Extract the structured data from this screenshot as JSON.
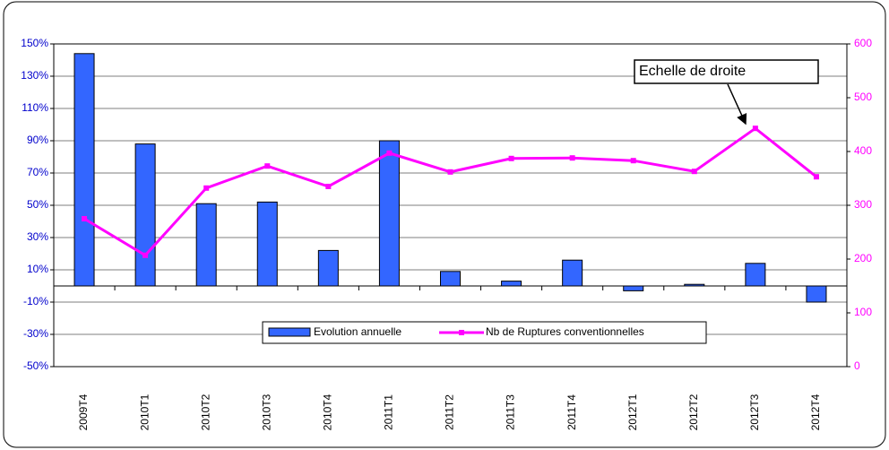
{
  "chart_data": {
    "type": "bar-line",
    "categories": [
      "2009T4",
      "2010T1",
      "2010T2",
      "2010T3",
      "2010T4",
      "2011T1",
      "2011T2",
      "2011T3",
      "2011T4",
      "2012T1",
      "2012T2",
      "2012T3",
      "2012T4"
    ],
    "series": [
      {
        "name": "Evolution annuelle",
        "color": "#3366ff",
        "type": "bar",
        "values": [
          144,
          88,
          51,
          52,
          22,
          90,
          9,
          3,
          16,
          -3,
          1,
          14,
          -10
        ]
      },
      {
        "name": "Nb de Ruptures conventionnelles",
        "color": "#ff00ff",
        "type": "line",
        "axis": "y2",
        "values": [
          275,
          207,
          332,
          373,
          335,
          397,
          362,
          387,
          388,
          383,
          363,
          443,
          353
        ]
      }
    ],
    "ylim": [
      -50,
      150
    ],
    "yticks": [
      {
        "value": -50,
        "label": "-50%"
      },
      {
        "value": -30,
        "label": "-30%"
      },
      {
        "value": -10,
        "label": "-10%"
      },
      {
        "value": 10,
        "label": "10%"
      },
      {
        "value": 30,
        "label": "30%"
      },
      {
        "value": 50,
        "label": "50%"
      },
      {
        "value": 70,
        "label": "70%"
      },
      {
        "value": 90,
        "label": "90%"
      },
      {
        "value": 110,
        "label": "110%"
      },
      {
        "value": 130,
        "label": "130%"
      },
      {
        "value": 150,
        "label": "150%"
      }
    ],
    "y2lim": [
      0,
      600
    ],
    "y2ticks": [
      0,
      100,
      200,
      300,
      400,
      500,
      600
    ],
    "grid": true,
    "annotation": "Echelle de droite"
  }
}
